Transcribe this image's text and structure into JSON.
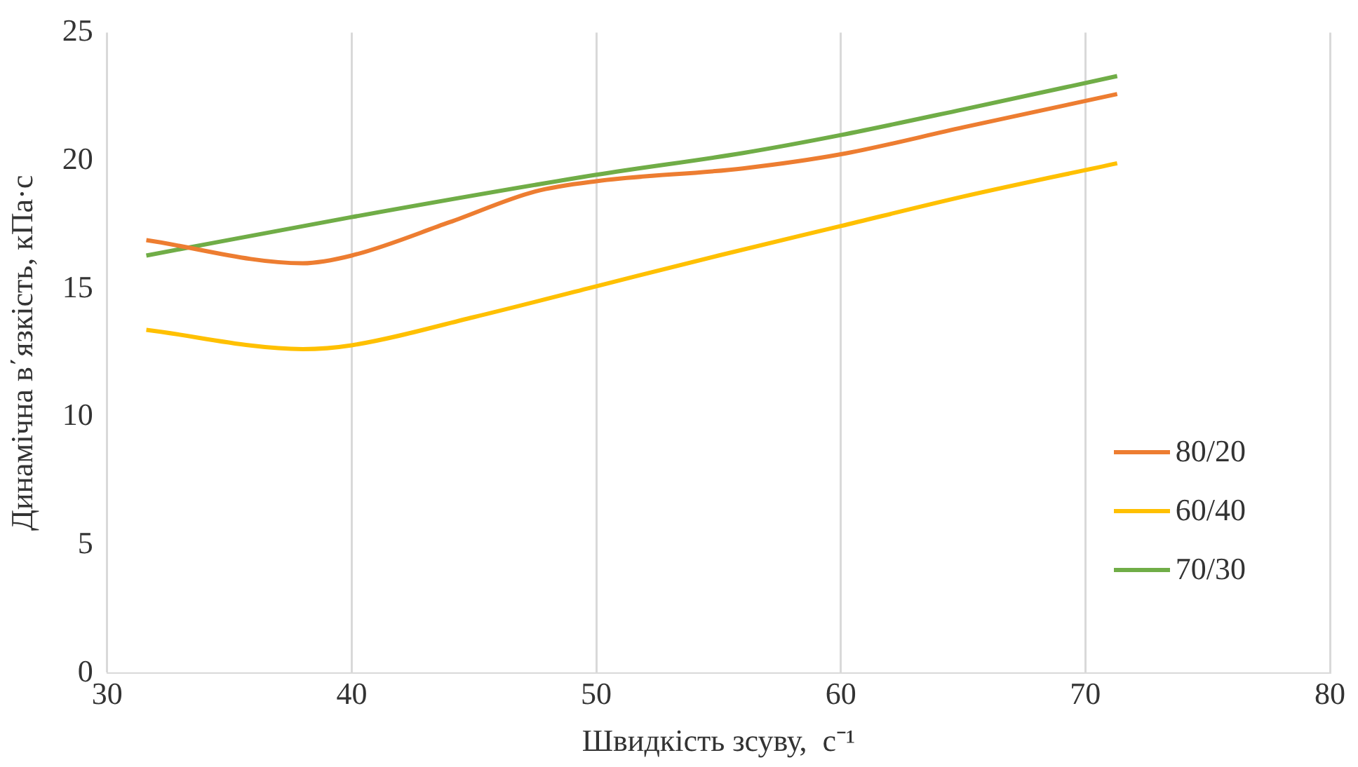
{
  "chart_data": {
    "type": "line",
    "xlabel": "Швидкість зсуву,  с⁻¹",
    "ylabel": "Динамічна в΄язкість, кПа·с",
    "xlim": [
      30,
      80
    ],
    "xticks": [
      30,
      40,
      50,
      60,
      70,
      80
    ],
    "ylim": [
      0,
      25
    ],
    "yticks": [
      0,
      5,
      10,
      15,
      20,
      25
    ],
    "grid": "x",
    "legend": "bottom right",
    "marker": "none",
    "line_style": "solid",
    "series": [
      {
        "name": "80/20",
        "color": "#ed7d31",
        "x": [
          31.6,
          38,
          40,
          44,
          47.5,
          50,
          56,
          60,
          65,
          71.3
        ],
        "values": [
          16.9,
          16.0,
          16.3,
          17.6,
          18.8,
          19.2,
          19.7,
          20.25,
          21.3,
          22.6
        ]
      },
      {
        "name": "60/40",
        "color": "#ffc000",
        "x": [
          31.6,
          38,
          40,
          45,
          50,
          55,
          60,
          65,
          71.3
        ],
        "values": [
          13.4,
          12.65,
          12.8,
          13.9,
          15.1,
          16.3,
          17.45,
          18.6,
          19.9
        ]
      },
      {
        "name": "70/30",
        "color": "#70ad47",
        "x": [
          31.6,
          40,
          50,
          56,
          60,
          65,
          71.3
        ],
        "values": [
          16.3,
          17.8,
          19.45,
          20.3,
          21.0,
          22.0,
          23.3
        ]
      }
    ]
  }
}
